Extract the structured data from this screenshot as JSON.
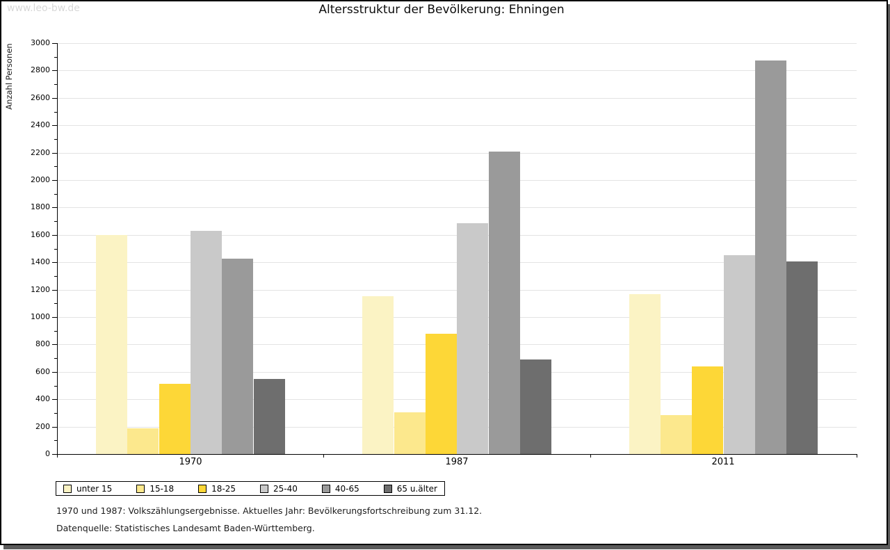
{
  "watermark": "www.leo-bw.de",
  "title": "Altersstruktur der Bevölkerung: Ehningen",
  "chart_data": {
    "type": "bar",
    "title": "Altersstruktur der Bevölkerung: Ehningen",
    "xlabel": "",
    "ylabel": "Anzahl Personen",
    "categories": [
      "1970",
      "1987",
      "2011"
    ],
    "series": [
      {
        "name": "unter 15",
        "color": "#FBF3C4",
        "values": [
          1600,
          1150,
          1165
        ]
      },
      {
        "name": "15-18",
        "color": "#FCE88D",
        "values": [
          190,
          305,
          285
        ]
      },
      {
        "name": "18-25",
        "color": "#FDD737",
        "values": [
          515,
          880,
          640
        ]
      },
      {
        "name": "25-40",
        "color": "#C9C9C9",
        "values": [
          1630,
          1685,
          1450
        ]
      },
      {
        "name": "40-65",
        "color": "#9A9A9A",
        "values": [
          1425,
          2210,
          2875
        ]
      },
      {
        "name": "65 u.älter",
        "color": "#6E6E6E",
        "values": [
          550,
          690,
          1405
        ]
      }
    ],
    "ylim": [
      0,
      3000
    ],
    "ytick_step": 200,
    "yminor_step": 100,
    "grid": true,
    "legend_position": "bottom-left"
  },
  "footnotes": [
    "1970 und 1987: Volkszählungsergebnisse. Aktuelles Jahr: Bevölkerungsfortschreibung zum 31.12.",
    "Datenquelle: Statistisches Landesamt Baden-Württemberg."
  ]
}
